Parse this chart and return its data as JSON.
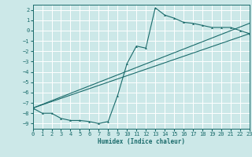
{
  "xlabel": "Humidex (Indice chaleur)",
  "xlim": [
    0,
    23
  ],
  "ylim": [
    -9.5,
    2.5
  ],
  "xticks": [
    0,
    1,
    2,
    3,
    4,
    5,
    6,
    7,
    8,
    9,
    10,
    11,
    12,
    13,
    14,
    15,
    16,
    17,
    18,
    19,
    20,
    21,
    22,
    23
  ],
  "yticks": [
    2,
    1,
    0,
    -1,
    -2,
    -3,
    -4,
    -5,
    -6,
    -7,
    -8,
    -9
  ],
  "bg_color": "#cce8e8",
  "line_color": "#1a6b6b",
  "grid_color": "#ffffff",
  "line1_x": [
    0,
    1,
    2,
    3,
    4,
    5,
    6,
    7,
    8,
    9,
    10,
    11,
    12,
    13,
    14,
    15,
    16,
    17,
    18,
    19,
    20,
    21,
    22,
    23
  ],
  "line1_y": [
    -7.5,
    -8.0,
    -8.0,
    -8.5,
    -8.7,
    -8.7,
    -8.8,
    -9.0,
    -8.8,
    -6.3,
    -3.2,
    -1.5,
    -1.7,
    2.2,
    1.5,
    1.2,
    0.8,
    0.7,
    0.5,
    0.3,
    0.3,
    0.3,
    0.0,
    -0.3
  ],
  "line2_x": [
    0,
    23
  ],
  "line2_y": [
    -7.5,
    -0.3
  ],
  "line3_x": [
    0,
    23
  ],
  "line3_y": [
    -7.5,
    0.7
  ]
}
